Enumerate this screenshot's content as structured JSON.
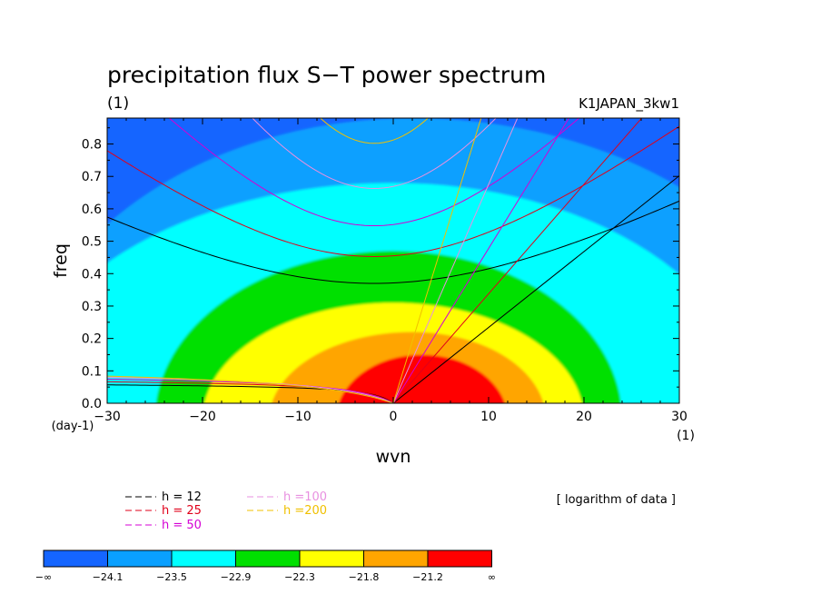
{
  "chart_data": {
    "type": "heatmap",
    "title": "precipitation flux S−T power spectrum",
    "title_unit": "(1)",
    "run_label": "K1JAPAN_3kw1",
    "xlabel": "wvn",
    "x_unit": "(1)",
    "ylabel": "freq",
    "y_unit": "(day-1)",
    "xlim": [
      -30,
      30
    ],
    "ylim": [
      0,
      0.88
    ],
    "x_ticks": [
      -30,
      -20,
      -10,
      0,
      10,
      20,
      30
    ],
    "y_ticks": [
      0.0,
      0.1,
      0.2,
      0.3,
      0.4,
      0.5,
      0.6,
      0.7,
      0.8
    ],
    "x_tick_labels": [
      "−30",
      "−20",
      "−10",
      "0",
      "10",
      "20",
      "30"
    ],
    "y_tick_labels": [
      "0.0",
      "0.1",
      "0.2",
      "0.3",
      "0.4",
      "0.5",
      "0.6",
      "0.7",
      "0.8"
    ],
    "note": "[ logarithm of data ]",
    "contour_levels": [
      -24.1,
      -23.5,
      -22.9,
      -22.3,
      -21.8,
      -21.2
    ],
    "colorbar": {
      "labels": [
        "−∞",
        "−24.1",
        "−23.5",
        "−22.9",
        "−22.3",
        "−21.8",
        "−21.2",
        "∞"
      ],
      "colors": [
        "#1565ff",
        "#0aa0ff",
        "#00ffff",
        "#00e000",
        "#ffff00",
        "#ffa500",
        "#ff0000"
      ]
    },
    "dispersion_curves": [
      {
        "name": "h = 12",
        "h": 12,
        "color": "#000000"
      },
      {
        "name": "h = 25",
        "h": 25,
        "color": "#e0001a"
      },
      {
        "name": "h = 50",
        "h": 50,
        "color": "#d400d4"
      },
      {
        "name": "h =100",
        "h": 100,
        "color": "#e890e0"
      },
      {
        "name": "h =200",
        "h": 200,
        "color": "#f0c000"
      }
    ]
  }
}
